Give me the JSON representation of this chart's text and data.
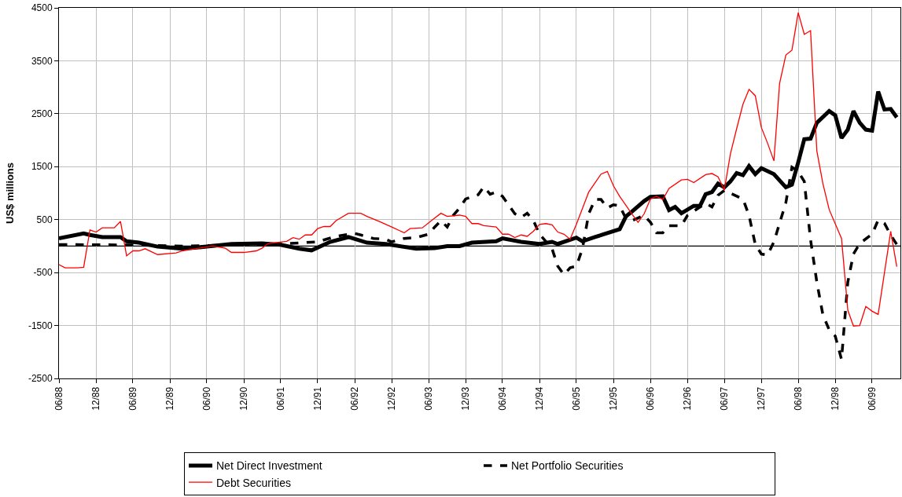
{
  "chart_data": {
    "type": "line",
    "ylabel": "US$ millions",
    "grid": true,
    "legend": "bottom",
    "marker": "none",
    "xlim": [
      "1988-06-01",
      "1999-10-19"
    ],
    "ylim": [
      -2500,
      4500
    ],
    "yticks": [
      -2500,
      -1500,
      -500,
      500,
      1500,
      2500,
      3500,
      4500
    ],
    "xticks": [
      {
        "value": "1988-06-01",
        "label": "06/88"
      },
      {
        "value": "1988-12-01",
        "label": "12/88"
      },
      {
        "value": "1989-06-01",
        "label": "06/89"
      },
      {
        "value": "1989-12-01",
        "label": "12/89"
      },
      {
        "value": "1990-06-01",
        "label": "06/90"
      },
      {
        "value": "1990-12-01",
        "label": "12/90"
      },
      {
        "value": "1991-06-01",
        "label": "06/91"
      },
      {
        "value": "1991-12-01",
        "label": "12/91"
      },
      {
        "value": "1992-06-01",
        "label": "06/92"
      },
      {
        "value": "1992-12-01",
        "label": "12/92"
      },
      {
        "value": "1993-06-01",
        "label": "06/93"
      },
      {
        "value": "1993-12-01",
        "label": "12/93"
      },
      {
        "value": "1994-06-01",
        "label": "06/94"
      },
      {
        "value": "1994-12-01",
        "label": "12/94"
      },
      {
        "value": "1995-06-01",
        "label": "06/95"
      },
      {
        "value": "1995-12-01",
        "label": "12/95"
      },
      {
        "value": "1996-06-01",
        "label": "06/96"
      },
      {
        "value": "1996-12-01",
        "label": "12/96"
      },
      {
        "value": "1997-06-01",
        "label": "06/97"
      },
      {
        "value": "1997-12-01",
        "label": "12/97"
      },
      {
        "value": "1998-06-01",
        "label": "06/98"
      },
      {
        "value": "1998-12-01",
        "label": "12/98"
      },
      {
        "value": "1999-06-01",
        "label": "06/99"
      }
    ],
    "ref_lines": [
      {
        "axis": "y",
        "value": 0,
        "color": "#000000",
        "line_style": "solid"
      }
    ],
    "series": [
      {
        "name": "Net Direct Investment",
        "color": "#000000",
        "line_style": "solid",
        "x": [
          "1988-06",
          "1988-10",
          "1988-11",
          "1989-01",
          "1989-04",
          "1989-05",
          "1989-07",
          "1989-10",
          "1990-02",
          "1990-06",
          "1990-10",
          "1991-03",
          "1991-06",
          "1991-09",
          "1991-11",
          "1992-02",
          "1992-05",
          "1992-08",
          "1992-11",
          "1993-04",
          "1993-07",
          "1993-09",
          "1993-11",
          "1994-01",
          "1994-05",
          "1994-06",
          "1994-09",
          "1994-12",
          "1995-02",
          "1995-03",
          "1995-06",
          "1995-07",
          "1995-09",
          "1996-01",
          "1996-02",
          "1996-03",
          "1996-05",
          "1996-06",
          "1996-08",
          "1996-09",
          "1996-10",
          "1996-11",
          "1997-01",
          "1997-02",
          "1997-03",
          "1997-04",
          "1997-05",
          "1997-06",
          "1997-07",
          "1997-08",
          "1997-09",
          "1997-10",
          "1997-11",
          "1997-12",
          "1998-02",
          "1998-04",
          "1998-05",
          "1998-06",
          "1998-07",
          "1998-08",
          "1998-09",
          "1998-11",
          "1998-12",
          "1999-01",
          "1999-02",
          "1999-03",
          "1999-04",
          "1999-05",
          "1999-06",
          "1999-07",
          "1999-08",
          "1999-09",
          "1999-10"
        ],
        "values": [
          146,
          240,
          210,
          170,
          170,
          90,
          65,
          -10,
          -50,
          -10,
          40,
          50,
          25,
          -50,
          -80,
          80,
          170,
          65,
          40,
          -50,
          -40,
          0,
          0,
          65,
          90,
          145,
          80,
          40,
          80,
          40,
          160,
          90,
          170,
          320,
          560,
          650,
          850,
          930,
          940,
          680,
          740,
          620,
          760,
          760,
          980,
          1020,
          1180,
          1110,
          1220,
          1380,
          1340,
          1510,
          1360,
          1470,
          1360,
          1110,
          1160,
          1580,
          2020,
          2030,
          2330,
          2550,
          2470,
          2040,
          2200,
          2550,
          2330,
          2200,
          2180,
          2920,
          2580,
          2590,
          2430
        ]
      },
      {
        "name": "Net Portfolio Securities",
        "color": "#000000",
        "line_style": "dashed",
        "x": [
          "1988-06",
          "1989-06",
          "1990-02",
          "1991-06",
          "1991-12",
          "1992-03",
          "1992-06",
          "1992-07",
          "1992-09",
          "1992-11",
          "1992-12",
          "1993-02",
          "1993-04",
          "1993-06",
          "1993-07",
          "1993-08",
          "1993-09",
          "1993-10",
          "1993-11",
          "1993-12",
          "1994-02",
          "1994-03",
          "1994-04",
          "1994-05",
          "1994-06",
          "1994-08",
          "1994-09",
          "1994-10",
          "1994-11",
          "1994-12",
          "1995-02",
          "1995-03",
          "1995-04",
          "1995-05",
          "1995-06",
          "1995-07",
          "1995-08",
          "1995-09",
          "1995-10",
          "1995-11",
          "1995-12",
          "1996-01",
          "1996-02",
          "1996-03",
          "1996-05",
          "1996-06",
          "1996-07",
          "1996-08",
          "1996-09",
          "1996-11",
          "1996-12",
          "1997-03",
          "1997-04",
          "1997-05",
          "1997-06",
          "1997-09",
          "1997-10",
          "1997-11",
          "1997-12",
          "1998-01",
          "1998-02",
          "1998-03",
          "1998-04",
          "1998-05",
          "1998-06",
          "1998-07",
          "1998-08",
          "1998-09",
          "1998-10",
          "1998-11",
          "1998-12",
          "1999-01",
          "1999-02",
          "1999-03",
          "1999-04",
          "1999-06",
          "1999-07",
          "1999-08",
          "1999-09",
          "1999-10"
        ],
        "values": [
          30,
          20,
          0,
          40,
          80,
          185,
          240,
          210,
          145,
          130,
          80,
          145,
          160,
          225,
          360,
          480,
          360,
          580,
          720,
          890,
          970,
          1120,
          980,
          1020,
          940,
          610,
          540,
          620,
          480,
          225,
          -50,
          -380,
          -540,
          -410,
          -380,
          -50,
          610,
          880,
          880,
          720,
          780,
          760,
          520,
          480,
          580,
          450,
          250,
          250,
          385,
          385,
          580,
          810,
          740,
          960,
          1050,
          890,
          580,
          30,
          -150,
          -170,
          80,
          430,
          820,
          1490,
          1410,
          1220,
          120,
          -680,
          -1300,
          -1580,
          -1700,
          -2140,
          -680,
          -150,
          50,
          225,
          490,
          430,
          210,
          30
        ]
      },
      {
        "name": "Debt Securities",
        "color": "#ff0000",
        "line_style": "solid",
        "x": [
          "1988-06",
          "1988-07",
          "1988-09",
          "1988-10",
          "1988-11",
          "1988-12",
          "1989-01",
          "1989-03",
          "1989-04",
          "1989-05",
          "1989-06",
          "1989-07",
          "1989-08",
          "1989-10",
          "1990-01",
          "1990-02",
          "1990-04",
          "1990-07",
          "1990-09",
          "1990-10",
          "1990-12",
          "1991-02",
          "1991-03",
          "1991-04",
          "1991-07",
          "1991-08",
          "1991-09",
          "1991-10",
          "1991-11",
          "1991-12",
          "1992-01",
          "1992-02",
          "1992-03",
          "1992-05",
          "1992-07",
          "1992-08",
          "1992-10",
          "1992-12",
          "1993-02",
          "1993-03",
          "1993-05",
          "1993-07",
          "1993-08",
          "1993-09",
          "1993-11",
          "1993-12",
          "1994-01",
          "1994-02",
          "1994-03",
          "1994-05",
          "1994-06",
          "1994-07",
          "1994-08",
          "1994-09",
          "1994-10",
          "1994-11",
          "1994-12",
          "1995-01",
          "1995-02",
          "1995-03",
          "1995-04",
          "1995-05",
          "1995-06",
          "1995-08",
          "1995-10",
          "1995-11",
          "1995-12",
          "1996-01",
          "1996-03",
          "1996-04",
          "1996-05",
          "1996-06",
          "1996-07",
          "1996-08",
          "1996-09",
          "1996-11",
          "1996-12",
          "1997-01",
          "1997-03",
          "1997-04",
          "1997-05",
          "1997-06",
          "1997-07",
          "1997-08",
          "1997-09",
          "1997-10",
          "1997-11",
          "1997-12",
          "1998-01",
          "1998-02",
          "1998-03",
          "1998-04",
          "1998-05",
          "1998-06",
          "1998-07",
          "1998-08",
          "1998-09",
          "1998-10",
          "1998-11",
          "1999-01",
          "1999-02",
          "1999-03",
          "1999-04",
          "1999-05",
          "1999-06",
          "1999-07",
          "1999-09",
          "1999-10"
        ],
        "values": [
          -350,
          -410,
          -410,
          -400,
          305,
          265,
          345,
          345,
          465,
          -185,
          -90,
          -90,
          -50,
          -160,
          -130,
          -90,
          -50,
          0,
          -40,
          -120,
          -120,
          -90,
          -40,
          50,
          90,
          160,
          130,
          210,
          210,
          330,
          370,
          370,
          480,
          620,
          620,
          560,
          465,
          360,
          250,
          330,
          345,
          530,
          620,
          560,
          585,
          560,
          425,
          425,
          385,
          360,
          225,
          225,
          160,
          210,
          185,
          280,
          410,
          425,
          400,
          265,
          225,
          130,
          410,
          1020,
          1360,
          1410,
          1140,
          940,
          610,
          450,
          610,
          890,
          940,
          880,
          1090,
          1250,
          1260,
          1200,
          1350,
          1370,
          1310,
          1060,
          1740,
          2220,
          2680,
          2960,
          2840,
          2240,
          1940,
          1610,
          3070,
          3610,
          3700,
          4410,
          4000,
          4070,
          1800,
          1180,
          690,
          145,
          -1210,
          -1510,
          -1500,
          -1140,
          -1230,
          -1290,
          280,
          -390
        ]
      }
    ]
  }
}
